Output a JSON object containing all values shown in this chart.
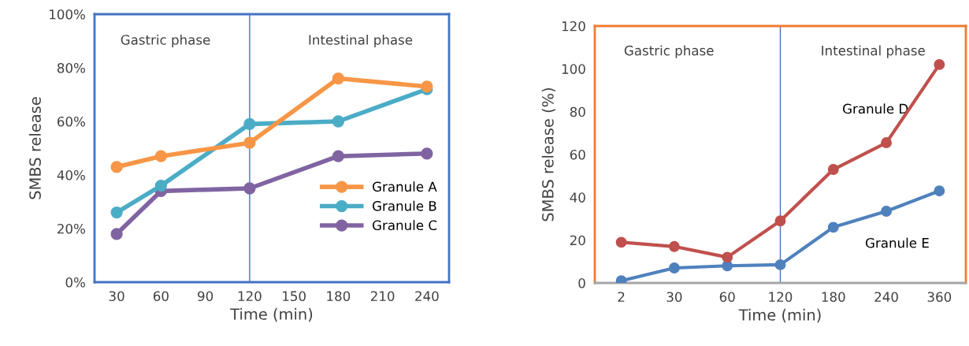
{
  "chart_data": [
    {
      "type": "line",
      "x": [
        30,
        60,
        120,
        180,
        240
      ],
      "xlabel": "Time (min)",
      "ylabel": "SMBS release",
      "xlim": [
        15,
        255
      ],
      "xticks": [
        30,
        60,
        90,
        120,
        150,
        180,
        210,
        240
      ],
      "ylim": [
        0,
        1
      ],
      "yticks": [
        {
          "value": 0,
          "label": "0%"
        },
        {
          "value": 0.2,
          "label": "20%"
        },
        {
          "value": 0.4,
          "label": "40%"
        },
        {
          "value": 0.6,
          "label": "60%"
        },
        {
          "value": 0.8,
          "label": "80%"
        },
        {
          "value": 1,
          "label": "100%"
        }
      ],
      "series": [
        {
          "name": "Granule A",
          "color": "#f79646",
          "values": [
            0.43,
            0.47,
            0.52,
            0.76,
            0.73
          ]
        },
        {
          "name": "Granule B",
          "color": "#4bacc6",
          "values": [
            0.26,
            0.36,
            0.59,
            0.6,
            0.72
          ]
        },
        {
          "name": "Granule C",
          "color": "#8064a2",
          "values": [
            0.18,
            0.34,
            0.35,
            0.47,
            0.48
          ]
        }
      ],
      "ref_lines": [
        {
          "axis": "x",
          "value": 120,
          "color": "#4472c4"
        }
      ],
      "annotations": [
        "Gastric phase",
        "Intestinal phase"
      ],
      "marker": "circle",
      "legend": "right",
      "grid": false
    },
    {
      "type": "line",
      "categories": [
        "2",
        "30",
        "60",
        "120",
        "180",
        "240",
        "360"
      ],
      "xlabel": "Time (min)",
      "ylabel": "SMBS release (%)",
      "ylim": [
        0,
        120
      ],
      "yticks": [
        0,
        20,
        40,
        60,
        80,
        100,
        120
      ],
      "series": [
        {
          "name": "Granule D",
          "color": "#c0504d",
          "values": [
            19,
            17,
            12,
            29,
            53,
            65.5,
            102
          ]
        },
        {
          "name": "Granule E",
          "color": "#4f81bd",
          "values": [
            1,
            7,
            8,
            8.5,
            26,
            33.5,
            43
          ]
        }
      ],
      "ref_lines": [
        {
          "axis": "x",
          "value": "120",
          "color": "#4472c4"
        }
      ],
      "annotations": [
        "Gastric phase",
        "Intestinal phase"
      ],
      "marker": "circle",
      "legend": false,
      "grid": false
    }
  ]
}
